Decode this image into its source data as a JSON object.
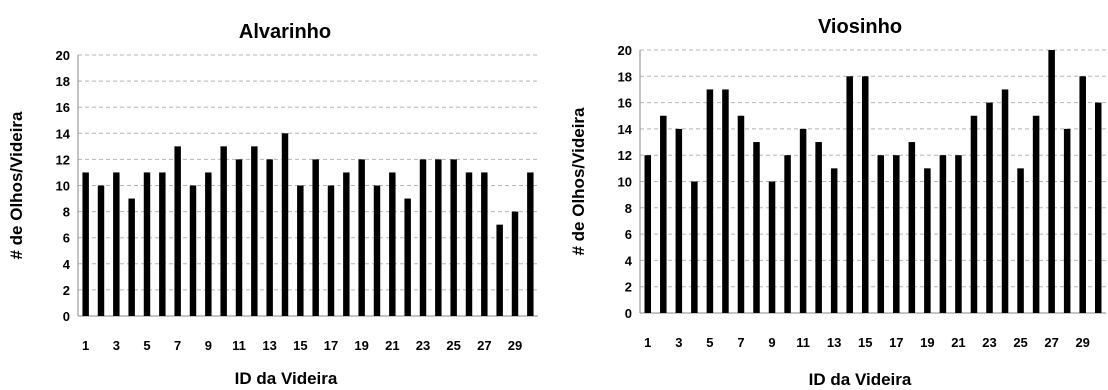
{
  "chart_data": [
    {
      "type": "bar",
      "title": "Alvarinho",
      "xlabel": "ID da Videira",
      "ylabel": "# de Olhos/Videira",
      "ylim": [
        0,
        20
      ],
      "yticks": [
        0,
        2,
        4,
        6,
        8,
        10,
        12,
        14,
        16,
        18,
        20
      ],
      "grid": true,
      "categories": [
        1,
        2,
        3,
        4,
        5,
        6,
        7,
        8,
        9,
        10,
        11,
        12,
        13,
        14,
        15,
        16,
        17,
        18,
        19,
        20,
        21,
        22,
        23,
        24,
        25,
        26,
        27,
        28,
        29,
        30
      ],
      "xtick_labels": [
        "1",
        "3",
        "5",
        "7",
        "9",
        "11",
        "13",
        "15",
        "17",
        "19",
        "21",
        "23",
        "25",
        "27",
        "29"
      ],
      "values": [
        11,
        10,
        11,
        9,
        11,
        11,
        13,
        10,
        11,
        13,
        12,
        13,
        12,
        14,
        10,
        12,
        10,
        11,
        12,
        10,
        11,
        9,
        12,
        12,
        12,
        11,
        11,
        7,
        8,
        11
      ]
    },
    {
      "type": "bar",
      "title": "Viosinho",
      "xlabel": "ID da Videira",
      "ylabel": "# de Olhos/Videira",
      "ylim": [
        0,
        20
      ],
      "yticks": [
        0,
        2,
        4,
        6,
        8,
        10,
        12,
        14,
        16,
        18,
        20
      ],
      "grid": true,
      "categories": [
        1,
        2,
        3,
        4,
        5,
        6,
        7,
        8,
        9,
        10,
        11,
        12,
        13,
        14,
        15,
        16,
        17,
        18,
        19,
        20,
        21,
        22,
        23,
        24,
        25,
        26,
        27,
        28,
        29,
        30
      ],
      "xtick_labels": [
        "1",
        "3",
        "5",
        "7",
        "9",
        "11",
        "13",
        "15",
        "17",
        "19",
        "21",
        "23",
        "25",
        "27",
        "29"
      ],
      "values": [
        12,
        15,
        14,
        10,
        17,
        17,
        15,
        13,
        10,
        12,
        14,
        13,
        11,
        18,
        18,
        12,
        12,
        13,
        11,
        12,
        12,
        15,
        16,
        17,
        11,
        15,
        20,
        14,
        18,
        16
      ]
    }
  ]
}
